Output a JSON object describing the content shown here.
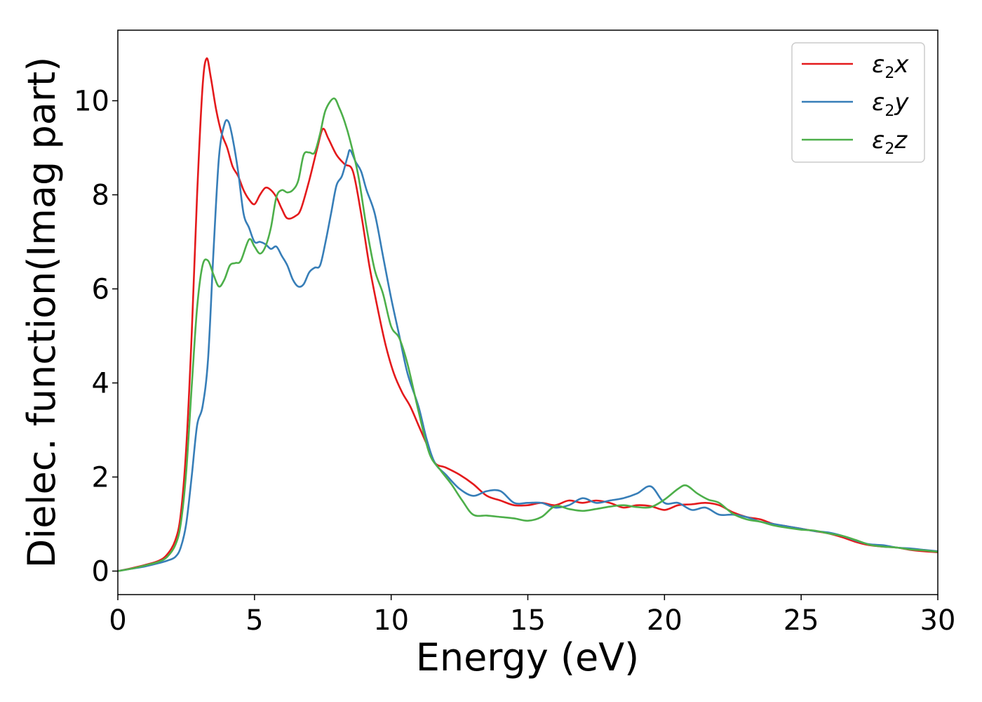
{
  "chart_data": {
    "type": "line",
    "xlabel": "Energy (eV)",
    "ylabel": "Dielec. function(Imag part)",
    "xlim": [
      0,
      30
    ],
    "ylim": [
      -0.5,
      11.5
    ],
    "xticks": [
      0,
      5,
      10,
      15,
      20,
      25,
      30
    ],
    "yticks": [
      0,
      2,
      4,
      6,
      8,
      10
    ],
    "grid": false,
    "legend_position": "top-right",
    "series": [
      {
        "name": "ε2x",
        "color": "#e41a1c",
        "x": [
          0,
          0.5,
          1,
          1.5,
          1.8,
          2.1,
          2.3,
          2.5,
          2.7,
          2.9,
          3.1,
          3.25,
          3.4,
          3.6,
          3.8,
          4.0,
          4.2,
          4.4,
          4.6,
          4.8,
          5.0,
          5.2,
          5.4,
          5.6,
          5.8,
          6.0,
          6.2,
          6.5,
          6.7,
          7.0,
          7.3,
          7.5,
          7.7,
          8.0,
          8.3,
          8.6,
          8.9,
          9.2,
          9.5,
          9.8,
          10.1,
          10.4,
          10.7,
          11.0,
          11.3,
          11.6,
          12.0,
          12.5,
          13.0,
          13.5,
          14.0,
          14.5,
          15.0,
          15.5,
          16.0,
          16.5,
          17.0,
          17.5,
          18.0,
          18.5,
          19.0,
          19.5,
          20.0,
          20.5,
          21.0,
          21.5,
          22.0,
          22.5,
          23.0,
          23.5,
          24.0,
          24.5,
          25.0,
          25.5,
          26.0,
          26.5,
          27.0,
          27.5,
          28.0,
          28.5,
          29.0,
          29.5,
          30.0
        ],
        "y": [
          0,
          0.06,
          0.13,
          0.22,
          0.35,
          0.65,
          1.2,
          2.6,
          5.0,
          8.0,
          10.3,
          10.9,
          10.5,
          9.8,
          9.3,
          9.0,
          8.6,
          8.4,
          8.1,
          7.9,
          7.8,
          8.0,
          8.15,
          8.1,
          7.95,
          7.7,
          7.5,
          7.55,
          7.7,
          8.3,
          9.0,
          9.4,
          9.2,
          8.85,
          8.65,
          8.5,
          7.6,
          6.5,
          5.6,
          4.8,
          4.2,
          3.8,
          3.5,
          3.1,
          2.7,
          2.3,
          2.2,
          2.05,
          1.85,
          1.6,
          1.5,
          1.4,
          1.4,
          1.45,
          1.4,
          1.5,
          1.45,
          1.5,
          1.45,
          1.35,
          1.4,
          1.38,
          1.3,
          1.4,
          1.42,
          1.45,
          1.4,
          1.25,
          1.15,
          1.1,
          1.0,
          0.95,
          0.9,
          0.85,
          0.8,
          0.72,
          0.62,
          0.55,
          0.52,
          0.5,
          0.45,
          0.42,
          0.4
        ]
      },
      {
        "name": "ε2y",
        "color": "#377eb8",
        "x": [
          0,
          0.5,
          1,
          1.5,
          1.8,
          2.1,
          2.3,
          2.5,
          2.7,
          2.9,
          3.1,
          3.3,
          3.5,
          3.7,
          3.9,
          4.05,
          4.2,
          4.4,
          4.6,
          4.8,
          5.0,
          5.2,
          5.4,
          5.6,
          5.8,
          6.0,
          6.2,
          6.4,
          6.6,
          6.8,
          7.0,
          7.2,
          7.4,
          7.6,
          7.8,
          8.0,
          8.2,
          8.4,
          8.5,
          8.7,
          8.9,
          9.1,
          9.4,
          9.7,
          10.0,
          10.3,
          10.6,
          11.0,
          11.3,
          11.6,
          12.0,
          12.5,
          13.0,
          13.5,
          14.0,
          14.5,
          15.0,
          15.5,
          16.0,
          16.5,
          17.0,
          17.5,
          18.0,
          18.5,
          19.0,
          19.5,
          20.0,
          20.5,
          21.0,
          21.5,
          22.0,
          22.5,
          23.0,
          23.5,
          24.0,
          24.5,
          25.0,
          25.5,
          26.0,
          26.5,
          27.0,
          27.5,
          28.0,
          28.5,
          29.0,
          29.5,
          30.0
        ],
        "y": [
          0,
          0.05,
          0.1,
          0.17,
          0.22,
          0.3,
          0.5,
          1.0,
          2.0,
          3.1,
          3.5,
          4.5,
          6.8,
          8.8,
          9.5,
          9.55,
          9.2,
          8.5,
          7.6,
          7.3,
          7.0,
          7.0,
          6.95,
          6.85,
          6.9,
          6.7,
          6.5,
          6.2,
          6.05,
          6.1,
          6.35,
          6.45,
          6.5,
          7.0,
          7.6,
          8.2,
          8.4,
          8.8,
          8.95,
          8.7,
          8.5,
          8.1,
          7.6,
          6.7,
          5.8,
          5.0,
          4.2,
          3.5,
          2.8,
          2.3,
          2.05,
          1.75,
          1.6,
          1.7,
          1.7,
          1.45,
          1.45,
          1.45,
          1.35,
          1.4,
          1.55,
          1.45,
          1.5,
          1.55,
          1.65,
          1.8,
          1.45,
          1.45,
          1.3,
          1.35,
          1.2,
          1.2,
          1.15,
          1.05,
          1.0,
          0.95,
          0.9,
          0.85,
          0.82,
          0.75,
          0.65,
          0.57,
          0.55,
          0.5,
          0.48,
          0.45,
          0.42
        ]
      },
      {
        "name": "ε2z",
        "color": "#4daf4a",
        "x": [
          0,
          0.5,
          1,
          1.5,
          1.8,
          2.1,
          2.3,
          2.5,
          2.7,
          2.9,
          3.1,
          3.3,
          3.5,
          3.7,
          3.9,
          4.1,
          4.3,
          4.5,
          4.8,
          5.0,
          5.2,
          5.4,
          5.6,
          5.8,
          6.0,
          6.2,
          6.4,
          6.6,
          6.8,
          7.0,
          7.2,
          7.4,
          7.6,
          7.9,
          8.1,
          8.3,
          8.5,
          8.8,
          9.1,
          9.4,
          9.7,
          10.0,
          10.3,
          10.6,
          11.0,
          11.4,
          11.8,
          12.2,
          12.6,
          13.0,
          13.5,
          14.0,
          14.5,
          15.0,
          15.5,
          16.0,
          16.5,
          17.0,
          17.5,
          18.0,
          18.5,
          19.0,
          19.5,
          20.0,
          20.5,
          20.8,
          21.2,
          21.6,
          22.0,
          22.5,
          23.0,
          23.5,
          24.0,
          24.5,
          25.0,
          25.5,
          26.0,
          26.5,
          27.0,
          27.5,
          28.0,
          28.5,
          29.0,
          29.5,
          30.0
        ],
        "y": [
          0,
          0.05,
          0.12,
          0.2,
          0.3,
          0.55,
          1.0,
          2.1,
          3.9,
          5.6,
          6.5,
          6.6,
          6.3,
          6.05,
          6.2,
          6.5,
          6.55,
          6.6,
          7.05,
          6.9,
          6.75,
          6.9,
          7.3,
          7.95,
          8.1,
          8.05,
          8.1,
          8.3,
          8.85,
          8.9,
          8.9,
          9.3,
          9.8,
          10.05,
          9.85,
          9.55,
          9.15,
          8.4,
          7.3,
          6.4,
          5.9,
          5.2,
          4.95,
          4.4,
          3.4,
          2.5,
          2.15,
          1.85,
          1.5,
          1.2,
          1.18,
          1.15,
          1.12,
          1.07,
          1.15,
          1.38,
          1.32,
          1.28,
          1.32,
          1.37,
          1.4,
          1.36,
          1.36,
          1.52,
          1.75,
          1.82,
          1.65,
          1.52,
          1.45,
          1.22,
          1.1,
          1.05,
          0.97,
          0.92,
          0.88,
          0.86,
          0.8,
          0.75,
          0.66,
          0.56,
          0.52,
          0.5,
          0.46,
          0.44,
          0.41
        ]
      }
    ]
  }
}
